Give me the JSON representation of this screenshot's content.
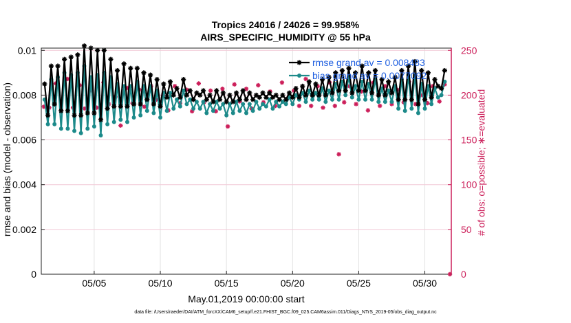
{
  "chart_data": {
    "type": "line",
    "title": "Tropics 24016 / 24026 = 99.958%",
    "subtitle": "AIRS_SPECIFIC_HUMIDITY @ 55 hPa",
    "xlabel": "May.01,2019 00:00:00 start",
    "ylabel": "rmse and bias (model - observation)",
    "ylabel_right": "# of obs: o=possible; ∗=evaluated",
    "footnote": "data file: /Users/raeder/DAI/ATM_forcXX/CAM6_setup/f.e21.FHIST_BGC.f09_025.CAM6assim.011/Diags_NTrS_2019-05/obs_diag_output.nc",
    "x_ticks": [
      "05/05",
      "05/10",
      "05/15",
      "05/20",
      "05/25",
      "05/30"
    ],
    "x_tick_days": [
      5,
      10,
      15,
      20,
      25,
      30
    ],
    "xlim": [
      1,
      32
    ],
    "y_ticks": [
      "0",
      "0.002",
      "0.004",
      "0.006",
      "0.008",
      "0.01"
    ],
    "y_tick_values": [
      0,
      0.002,
      0.004,
      0.006,
      0.008,
      0.01
    ],
    "ylim": [
      0,
      0.0101
    ],
    "y2_ticks": [
      "0",
      "50",
      "100",
      "150",
      "200",
      "250"
    ],
    "y2_tick_values": [
      0,
      50,
      100,
      150,
      200,
      250
    ],
    "y2lim": [
      0,
      252.5
    ],
    "legend_position": "top-right",
    "series": [
      {
        "name": "rmse grand av = 0.008483",
        "color": "#000000",
        "marker": "star",
        "x": [
          1.25,
          1.5,
          1.75,
          2,
          2.25,
          2.5,
          2.75,
          3,
          3.25,
          3.5,
          3.75,
          4,
          4.25,
          4.5,
          4.75,
          5,
          5.25,
          5.5,
          5.75,
          6,
          6.25,
          6.5,
          6.75,
          7,
          7.25,
          7.5,
          7.75,
          8,
          8.25,
          8.5,
          8.75,
          9,
          9.25,
          9.5,
          9.75,
          10,
          10.25,
          10.5,
          10.75,
          11,
          11.25,
          11.5,
          11.75,
          12,
          12.25,
          12.5,
          12.75,
          13,
          13.25,
          13.5,
          13.75,
          14,
          14.25,
          14.5,
          14.75,
          15,
          15.25,
          15.5,
          15.75,
          16,
          16.25,
          16.5,
          16.75,
          17,
          17.25,
          17.5,
          17.75,
          18,
          18.25,
          18.5,
          18.75,
          19,
          19.25,
          19.5,
          19.75,
          20,
          20.25,
          20.5,
          20.75,
          21,
          21.25,
          21.5,
          21.75,
          22,
          22.25,
          22.5,
          22.75,
          23,
          23.25,
          23.5,
          23.75,
          24,
          24.25,
          24.5,
          24.75,
          25,
          25.25,
          25.5,
          25.75,
          26,
          26.25,
          26.5,
          26.75,
          27,
          27.25,
          27.5,
          27.75,
          28,
          28.25,
          28.5,
          28.75,
          29,
          29.25,
          29.5,
          29.75,
          30,
          30.25,
          30.5,
          30.75,
          31,
          31.25,
          31.5
        ],
        "values": [
          0.0085,
          0.0071,
          0.0093,
          0.0076,
          0.0093,
          0.0073,
          0.0096,
          0.0073,
          0.0097,
          0.0071,
          0.0098,
          0.0071,
          0.0102,
          0.0072,
          0.0101,
          0.0072,
          0.01,
          0.0069,
          0.01,
          0.0074,
          0.0096,
          0.0075,
          0.0091,
          0.0075,
          0.0094,
          0.0075,
          0.0092,
          0.0076,
          0.0092,
          0.0076,
          0.009,
          0.0078,
          0.0089,
          0.0076,
          0.0087,
          0.0075,
          0.0085,
          0.0079,
          0.0086,
          0.008,
          0.0083,
          0.0079,
          0.0087,
          0.008,
          0.0082,
          0.0078,
          0.0081,
          0.008,
          0.0082,
          0.0078,
          0.008,
          0.0077,
          0.0082,
          0.0078,
          0.0081,
          0.0077,
          0.008,
          0.0077,
          0.0081,
          0.0078,
          0.0082,
          0.0078,
          0.0081,
          0.0078,
          0.008,
          0.0079,
          0.0081,
          0.0079,
          0.0081,
          0.0079,
          0.008,
          0.0078,
          0.008,
          0.0078,
          0.0081,
          0.0079,
          0.0083,
          0.0079,
          0.0084,
          0.008,
          0.0086,
          0.008,
          0.0085,
          0.008,
          0.0087,
          0.008,
          0.0088,
          0.0081,
          0.009,
          0.0082,
          0.0091,
          0.0082,
          0.0092,
          0.0081,
          0.009,
          0.0082,
          0.0093,
          0.0082,
          0.009,
          0.0081,
          0.0091,
          0.008,
          0.0087,
          0.008,
          0.0086,
          0.0081,
          0.0088,
          0.0078,
          0.0091,
          0.0078,
          0.0093,
          0.0078,
          0.0095,
          0.0076,
          0.0091,
          0.0078,
          0.009,
          0.0079,
          0.0087,
          0.0084,
          0.0083,
          0.0091
        ]
      },
      {
        "name": "bias grand av = 0.0077092",
        "color": "#1c8a8a",
        "marker": "dot",
        "x": [
          1.25,
          1.5,
          1.75,
          2,
          2.25,
          2.5,
          2.75,
          3,
          3.25,
          3.5,
          3.75,
          4,
          4.25,
          4.5,
          4.75,
          5,
          5.25,
          5.5,
          5.75,
          6,
          6.25,
          6.5,
          6.75,
          7,
          7.25,
          7.5,
          7.75,
          8,
          8.25,
          8.5,
          8.75,
          9,
          9.25,
          9.5,
          9.75,
          10,
          10.25,
          10.5,
          10.75,
          11,
          11.25,
          11.5,
          11.75,
          12,
          12.25,
          12.5,
          12.75,
          13,
          13.25,
          13.5,
          13.75,
          14,
          14.25,
          14.5,
          14.75,
          15,
          15.25,
          15.5,
          15.75,
          16,
          16.25,
          16.5,
          16.75,
          17,
          17.25,
          17.5,
          17.75,
          18,
          18.25,
          18.5,
          18.75,
          19,
          19.25,
          19.5,
          19.75,
          20,
          20.25,
          20.5,
          20.75,
          21,
          21.25,
          21.5,
          21.75,
          22,
          22.25,
          22.5,
          22.75,
          23,
          23.25,
          23.5,
          23.75,
          24,
          24.25,
          24.5,
          24.75,
          25,
          25.25,
          25.5,
          25.75,
          26,
          26.25,
          26.5,
          26.75,
          27,
          27.25,
          27.5,
          27.75,
          28,
          28.25,
          28.5,
          28.75,
          29,
          29.25,
          29.5,
          29.75,
          30,
          30.25,
          30.5,
          30.75,
          31,
          31.25,
          31.5
        ],
        "values": [
          0.0078,
          0.0067,
          0.0087,
          0.0067,
          0.0088,
          0.0065,
          0.009,
          0.0065,
          0.0089,
          0.0064,
          0.009,
          0.0063,
          0.0093,
          0.0065,
          0.0088,
          0.0066,
          0.0089,
          0.0062,
          0.009,
          0.0067,
          0.0088,
          0.0068,
          0.0085,
          0.0069,
          0.0084,
          0.0068,
          0.0084,
          0.007,
          0.0086,
          0.0071,
          0.0084,
          0.0073,
          0.0084,
          0.0072,
          0.0082,
          0.007,
          0.0081,
          0.0073,
          0.0081,
          0.0074,
          0.0078,
          0.0075,
          0.0082,
          0.0076,
          0.0078,
          0.0074,
          0.0077,
          0.0074,
          0.0077,
          0.0072,
          0.0076,
          0.0073,
          0.0077,
          0.0074,
          0.0076,
          0.0071,
          0.0076,
          0.0072,
          0.0077,
          0.0073,
          0.0076,
          0.0072,
          0.0076,
          0.0073,
          0.0077,
          0.0074,
          0.0076,
          0.0075,
          0.0078,
          0.0074,
          0.0077,
          0.0075,
          0.0077,
          0.0076,
          0.0079,
          0.0076,
          0.008,
          0.0078,
          0.0081,
          0.0077,
          0.0082,
          0.0078,
          0.0081,
          0.0078,
          0.0083,
          0.0077,
          0.0082,
          0.0078,
          0.0085,
          0.0078,
          0.0086,
          0.008,
          0.0088,
          0.0079,
          0.0084,
          0.0078,
          0.0086,
          0.0078,
          0.0085,
          0.0078,
          0.0087,
          0.0077,
          0.0083,
          0.0077,
          0.0082,
          0.0077,
          0.0084,
          0.0074,
          0.0087,
          0.0073,
          0.0089,
          0.0074,
          0.0089,
          0.0072,
          0.0085,
          0.0074,
          0.0084,
          0.0076,
          0.0083,
          0.0079,
          0.008,
          0.0086
        ]
      },
      {
        "name": "# of obs evaluated",
        "axis": "right",
        "color": "#cc1f5a",
        "marker": "asterisk",
        "x": [
          1.2,
          1.6,
          2.1,
          2.5,
          3.0,
          3.4,
          3.9,
          4.3,
          4.8,
          5.2,
          5.7,
          6.1,
          6.6,
          7.0,
          7.5,
          7.9,
          8.4,
          8.8,
          9.3,
          9.7,
          10.2,
          10.6,
          11.1,
          11.5,
          12.0,
          12.4,
          12.9,
          13.3,
          13.8,
          14.2,
          14.7,
          15.1,
          15.6,
          16.0,
          16.5,
          16.9,
          17.4,
          17.8,
          18.3,
          18.7,
          19.2,
          19.6,
          20.1,
          20.5,
          21.0,
          21.4,
          21.9,
          22.3,
          22.8,
          23.2,
          23.5,
          23.9,
          24.3,
          24.8,
          25.2,
          25.7,
          26.1,
          26.6,
          27.0,
          27.5,
          27.9,
          28.4,
          28.8,
          29.3,
          29.7,
          30.2,
          30.6,
          31.1,
          31.5
        ],
        "values": [
          187,
          186,
          213,
          183,
          218,
          186,
          211,
          185,
          205,
          186,
          214,
          190,
          198,
          166,
          208,
          191,
          206,
          187,
          210,
          195,
          200,
          183,
          210,
          191,
          206,
          182,
          213,
          192,
          205,
          182,
          207,
          165,
          212,
          193,
          207,
          185,
          211,
          192,
          204,
          188,
          214,
          196,
          205,
          188,
          218,
          188,
          210,
          186,
          214,
          188,
          134,
          192,
          210,
          190,
          204,
          183,
          214,
          188,
          210,
          190,
          206,
          192,
          215,
          190,
          200,
          191,
          210,
          193,
          212
        ]
      }
    ]
  }
}
